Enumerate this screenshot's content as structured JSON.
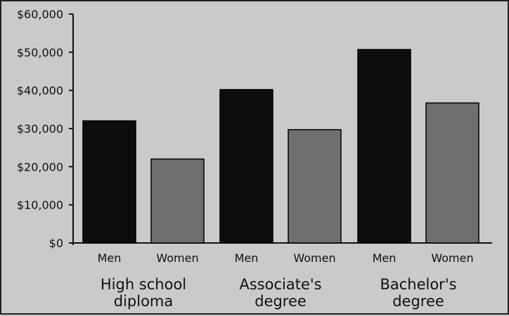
{
  "chart_data": {
    "type": "bar",
    "title": "",
    "xlabel": "",
    "ylabel": "",
    "ylim": [
      0,
      60000
    ],
    "y_ticks": [
      {
        "value": 0,
        "label": "$0"
      },
      {
        "value": 10000,
        "label": "$10,000"
      },
      {
        "value": 20000,
        "label": "$20,000"
      },
      {
        "value": 30000,
        "label": "$30,000"
      },
      {
        "value": 40000,
        "label": "$40,000"
      },
      {
        "value": 50000,
        "label": "$50,000"
      },
      {
        "value": 60000,
        "label": "$60,000"
      }
    ],
    "grid": false,
    "legend": "none",
    "groups": [
      {
        "label_lines": [
          "High school",
          "diploma"
        ]
      },
      {
        "label_lines": [
          "Associate's",
          "degree"
        ]
      },
      {
        "label_lines": [
          "Bachelor's",
          "degree"
        ]
      }
    ],
    "series": [
      {
        "name": "Men",
        "color": "#0d0d0d",
        "values": [
          32000,
          40200,
          50700
        ]
      },
      {
        "name": "Women",
        "color": "#6f6f6f",
        "values": [
          22000,
          29700,
          36700
        ]
      }
    ]
  }
}
